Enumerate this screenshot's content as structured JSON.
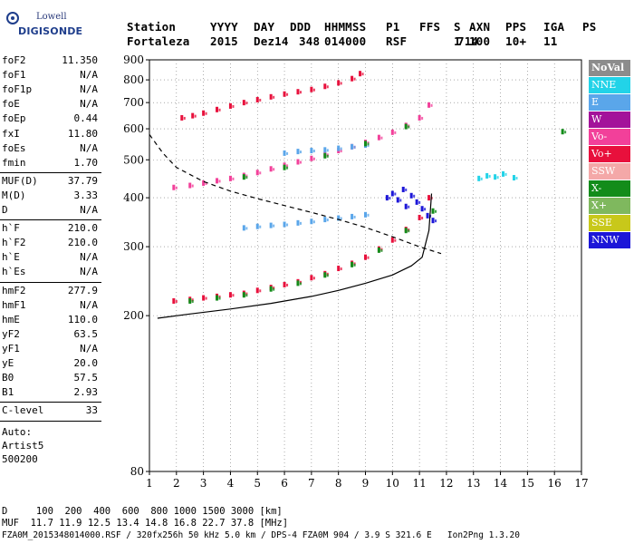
{
  "logo": {
    "line1": "Lowell",
    "line2": "DIGISONDE"
  },
  "header": {
    "labels": [
      "Station",
      "YYYY",
      "DAY",
      "DDD",
      "HHMMSS",
      "P1",
      "FFS",
      "S",
      "AXN",
      "PPS",
      "IGA",
      "PS"
    ],
    "values": [
      "Fortaleza",
      "2015",
      "Dez14",
      "348",
      "014000",
      "RSF",
      "1",
      "714",
      "100",
      "10+",
      "11"
    ]
  },
  "params": [
    {
      "name": "foF2",
      "value": "11.350"
    },
    {
      "name": "foF1",
      "value": "N/A"
    },
    {
      "name": "foF1p",
      "value": "N/A"
    },
    {
      "name": "foE",
      "value": "N/A"
    },
    {
      "name": "foEp",
      "value": "0.44"
    },
    {
      "name": "fxI",
      "value": "11.80"
    },
    {
      "name": "foEs",
      "value": "N/A"
    },
    {
      "name": "fmin",
      "value": "1.70"
    },
    {
      "name": "MUF(D)",
      "value": "37.79"
    },
    {
      "name": "M(D)",
      "value": "3.33"
    },
    {
      "name": "D",
      "value": "N/A"
    },
    {
      "name": "h`F",
      "value": "210.0"
    },
    {
      "name": "h`F2",
      "value": "210.0"
    },
    {
      "name": "h`E",
      "value": "N/A"
    },
    {
      "name": "h`Es",
      "value": "N/A"
    },
    {
      "name": "hmF2",
      "value": "277.9"
    },
    {
      "name": "hmF1",
      "value": "N/A"
    },
    {
      "name": "hmE",
      "value": "110.0"
    },
    {
      "name": "yF2",
      "value": "63.5"
    },
    {
      "name": "yF1",
      "value": "N/A"
    },
    {
      "name": "yE",
      "value": "20.0"
    },
    {
      "name": "B0",
      "value": "57.5"
    },
    {
      "name": "B1",
      "value": "2.93"
    },
    {
      "name": "C-level",
      "value": "33"
    }
  ],
  "auto": [
    "Auto:",
    "Artist5",
    "500200"
  ],
  "legend": [
    {
      "label": "NoVal",
      "color": "#8c8c8c"
    },
    {
      "label": "NNE",
      "color": "#22d3e8"
    },
    {
      "label": "E",
      "color": "#5aa6ea"
    },
    {
      "label": "W",
      "color": "#a3129a"
    },
    {
      "label": "Vo-",
      "color": "#f2409a"
    },
    {
      "label": "Vo+",
      "color": "#e8103c"
    },
    {
      "label": "SSW",
      "color": "#f4a8a8"
    },
    {
      "label": "X-",
      "color": "#138c1a"
    },
    {
      "label": "X+",
      "color": "#7fb85e"
    },
    {
      "label": "SSE",
      "color": "#c8c81a"
    },
    {
      "label": "NNW",
      "color": "#1c16d8"
    }
  ],
  "footer": {
    "d_line": "D     100  200  400  600  800 1000 1500 3000 [km]",
    "muf_line": "MUF  11.7 11.9 12.5 13.4 14.8 16.8 22.7 37.8 [MHz]",
    "file_line": "FZA0M_2015348014000.RSF / 320fx256h 50 kHz 5.0 km / DPS-4 FZA0M 904 / 3.9 S 321.6 E   Ion2Png 1.3.20"
  },
  "chart_data": {
    "type": "scatter",
    "title": "",
    "xlabel": "",
    "ylabel": "",
    "xlim": [
      1,
      17
    ],
    "ylim": [
      80,
      900
    ],
    "y_scale": "log",
    "x_ticks": [
      1,
      2,
      3,
      4,
      5,
      6,
      7,
      8,
      9,
      10,
      11,
      12,
      13,
      14,
      15,
      16,
      17
    ],
    "y_ticks": [
      80,
      200,
      300,
      400,
      500,
      600,
      700,
      800,
      900
    ],
    "grid": true,
    "legend_position": "right",
    "series": [
      {
        "label": "Vo+",
        "color": "#e8103c",
        "points": [
          [
            1.9,
            218
          ],
          [
            2.5,
            220
          ],
          [
            3.0,
            222
          ],
          [
            3.5,
            224
          ],
          [
            4.0,
            226
          ],
          [
            4.5,
            228
          ],
          [
            5.0,
            232
          ],
          [
            5.5,
            236
          ],
          [
            6.0,
            240
          ],
          [
            6.5,
            244
          ],
          [
            7.0,
            250
          ],
          [
            7.5,
            256
          ],
          [
            8.0,
            264
          ],
          [
            8.5,
            272
          ],
          [
            9.0,
            282
          ],
          [
            9.5,
            296
          ],
          [
            10.0,
            312
          ],
          [
            10.5,
            332
          ],
          [
            11.0,
            356
          ],
          [
            11.35,
            400
          ]
        ]
      },
      {
        "label": "Vo- (2nd hop)",
        "color": "#f2409a",
        "points": [
          [
            1.9,
            425
          ],
          [
            2.5,
            430
          ],
          [
            3.0,
            436
          ],
          [
            3.5,
            442
          ],
          [
            4.0,
            448
          ],
          [
            4.5,
            456
          ],
          [
            5.0,
            464
          ],
          [
            5.5,
            474
          ],
          [
            6.0,
            484
          ],
          [
            6.5,
            494
          ],
          [
            7.0,
            504
          ],
          [
            7.5,
            516
          ],
          [
            8.0,
            528
          ],
          [
            8.5,
            540
          ],
          [
            9.0,
            554
          ],
          [
            9.5,
            570
          ],
          [
            10.0,
            588
          ],
          [
            10.5,
            612
          ],
          [
            11.0,
            640
          ],
          [
            11.35,
            690
          ]
        ]
      },
      {
        "label": "Vo+ (3rd hop)",
        "color": "#e8103c",
        "points": [
          [
            2.2,
            640
          ],
          [
            2.6,
            648
          ],
          [
            3.0,
            658
          ],
          [
            3.5,
            672
          ],
          [
            4.0,
            686
          ],
          [
            4.5,
            700
          ],
          [
            5.0,
            712
          ],
          [
            5.5,
            724
          ],
          [
            6.0,
            736
          ],
          [
            6.5,
            746
          ],
          [
            7.0,
            756
          ],
          [
            7.5,
            770
          ],
          [
            8.0,
            786
          ],
          [
            8.5,
            806
          ],
          [
            8.8,
            830
          ]
        ]
      },
      {
        "label": "E",
        "color": "#5aa6ea",
        "points": [
          [
            4.5,
            335
          ],
          [
            5.0,
            338
          ],
          [
            5.5,
            340
          ],
          [
            6.0,
            342
          ],
          [
            6.5,
            345
          ],
          [
            7.0,
            348
          ],
          [
            7.5,
            352
          ],
          [
            8.0,
            355
          ],
          [
            8.5,
            358
          ],
          [
            9.0,
            362
          ],
          [
            6.0,
            520
          ],
          [
            6.5,
            525
          ],
          [
            7.0,
            528
          ],
          [
            7.5,
            530
          ],
          [
            8.0,
            535
          ],
          [
            8.5,
            540
          ],
          [
            9.0,
            545
          ]
        ]
      },
      {
        "label": "NNW",
        "color": "#1c16d8",
        "points": [
          [
            9.8,
            400
          ],
          [
            10.0,
            410
          ],
          [
            10.2,
            395
          ],
          [
            10.5,
            380
          ],
          [
            10.7,
            405
          ],
          [
            10.9,
            390
          ],
          [
            11.1,
            375
          ],
          [
            11.3,
            360
          ],
          [
            11.5,
            350
          ],
          [
            10.4,
            420
          ]
        ]
      },
      {
        "label": "X-",
        "color": "#138c1a",
        "points": [
          [
            2.5,
            218
          ],
          [
            3.5,
            222
          ],
          [
            4.5,
            226
          ],
          [
            5.5,
            234
          ],
          [
            6.5,
            242
          ],
          [
            7.5,
            254
          ],
          [
            8.5,
            270
          ],
          [
            9.5,
            294
          ],
          [
            10.5,
            330
          ],
          [
            11.5,
            370
          ],
          [
            4.5,
            452
          ],
          [
            6.0,
            478
          ],
          [
            7.5,
            512
          ],
          [
            9.0,
            550
          ],
          [
            10.5,
            608
          ],
          [
            16.3,
            590
          ]
        ]
      },
      {
        "label": "NNE",
        "color": "#22d3e8",
        "points": [
          [
            13.2,
            448
          ],
          [
            13.5,
            455
          ],
          [
            13.8,
            452
          ],
          [
            14.1,
            460
          ],
          [
            14.5,
            450
          ]
        ]
      }
    ],
    "lines": [
      {
        "label": "profile",
        "style": "solid",
        "points": [
          [
            1.3,
            197
          ],
          [
            2.5,
            202
          ],
          [
            4.0,
            208
          ],
          [
            5.5,
            215
          ],
          [
            7.0,
            224
          ],
          [
            8.0,
            232
          ],
          [
            9.0,
            242
          ],
          [
            10.0,
            254
          ],
          [
            10.7,
            268
          ],
          [
            11.1,
            282
          ],
          [
            11.35,
            330
          ],
          [
            11.45,
            410
          ]
        ]
      },
      {
        "label": "MUF",
        "style": "dashed",
        "points": [
          [
            1.0,
            580
          ],
          [
            1.5,
            520
          ],
          [
            2.0,
            478
          ],
          [
            3.0,
            440
          ],
          [
            4.0,
            416
          ],
          [
            5.0,
            398
          ],
          [
            6.0,
            382
          ],
          [
            7.0,
            367
          ],
          [
            8.0,
            352
          ],
          [
            9.0,
            336
          ],
          [
            10.0,
            318
          ],
          [
            11.0,
            300
          ],
          [
            11.8,
            288
          ]
        ]
      }
    ]
  }
}
